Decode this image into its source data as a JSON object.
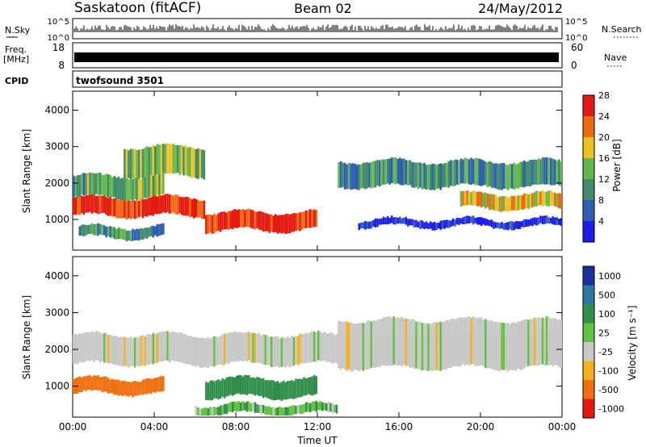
{
  "header": {
    "title": "Saskatoon (fitACF)",
    "beam": "Beam 02",
    "date": "24/May/2012"
  },
  "noise_panel": {
    "left_label": "N.Sky",
    "right_label": "N.Search",
    "left_ticks": [
      "10^5",
      "10^0"
    ],
    "right_ticks": [
      "10^5",
      "10^0"
    ]
  },
  "freq_panel": {
    "left_label_1": "Freq.",
    "left_label_2": "[MHz]",
    "left_ticks": [
      "18",
      "8"
    ],
    "right_label": "Nave",
    "right_ticks": [
      "60",
      "0"
    ]
  },
  "cpid_panel": {
    "label": "CPID",
    "value": "twofsound 3501"
  },
  "power_panel": {
    "ylabel": "Slant Range [km]",
    "yticks": [
      "1000",
      "2000",
      "3000",
      "4000"
    ],
    "colorbar_label": "Power [dB]",
    "colorbar_ticks": [
      "4",
      "8",
      "12",
      "16",
      "20",
      "24",
      "28"
    ],
    "colorbar_colors": [
      "#1d1dea",
      "#2e5fb4",
      "#3f8b6a",
      "#63b84b",
      "#f0c020",
      "#ee6a10",
      "#e41a10"
    ]
  },
  "velocity_panel": {
    "ylabel": "Slant Range [km]",
    "yticks": [
      "1000",
      "2000",
      "3000",
      "4000"
    ],
    "colorbar_label": "Velocity [m s⁻¹]",
    "colorbar_ticks": [
      "1000",
      "500",
      "100",
      "25",
      "-25",
      "-100",
      "-500",
      "-1000"
    ],
    "colorbar_colors": [
      "#1c2f9e",
      "#2e78a8",
      "#2f8f4a",
      "#62c23d",
      "#c8c8c8",
      "#f5b020",
      "#f07010",
      "#e41a10"
    ]
  },
  "x_axis": {
    "ticks": [
      "00:00",
      "04:00",
      "08:00",
      "12:00",
      "16:00",
      "20:00",
      "00:00"
    ],
    "label": "Time UT"
  },
  "chart_data": {
    "type": "heatmap",
    "title": "Saskatoon (fitACF)",
    "subtitle": "Beam 02",
    "date": "24/May/2012",
    "xlabel": "Time UT",
    "x_ticks": [
      "00:00",
      "04:00",
      "08:00",
      "12:00",
      "16:00",
      "20:00",
      "00:00"
    ],
    "xlim_hours": [
      0,
      24
    ],
    "panels": [
      {
        "name": "Power",
        "ylabel": "Slant Range [km]",
        "ylim": [
          180,
          4500
        ],
        "color_scale_label": "Power [dB]",
        "color_scale": [
          4,
          8,
          12,
          16,
          20,
          24,
          28
        ],
        "bands": [
          {
            "t": [
              0,
              6.5
            ],
            "range_km": [
              1100,
              1600
            ],
            "power_db": 28
          },
          {
            "t": [
              0,
              4.5
            ],
            "range_km": [
              1600,
              2200
            ],
            "power_db": 14
          },
          {
            "t": [
              0.3,
              4.5
            ],
            "range_km": [
              500,
              800
            ],
            "power_db": 12
          },
          {
            "t": [
              2.5,
              6.5
            ],
            "range_km": [
              2200,
              3000
            ],
            "power_db": 16
          },
          {
            "t": [
              6.5,
              12
            ],
            "range_km": [
              700,
              1200
            ],
            "power_db": 28
          },
          {
            "t": [
              13,
              24
            ],
            "range_km": [
              1900,
              2600
            ],
            "power_db": 12
          },
          {
            "t": [
              19,
              24
            ],
            "range_km": [
              1300,
              1700
            ],
            "power_db": 20
          },
          {
            "t": [
              14,
              24
            ],
            "range_km": [
              800,
              1000
            ],
            "power_db": 4
          }
        ]
      },
      {
        "name": "Velocity",
        "ylabel": "Slant Range [km]",
        "ylim": [
          180,
          4500
        ],
        "color_scale_label": "Velocity [m s^-1]",
        "color_scale": [
          1000,
          500,
          100,
          25,
          -25,
          -100,
          -500,
          -1000
        ],
        "bands": [
          {
            "t": [
              0,
              24
            ],
            "range_km": [
              1600,
              2400
            ],
            "velocity": 0
          },
          {
            "t": [
              0,
              4.5
            ],
            "range_km": [
              800,
              1200
            ],
            "velocity": -200
          },
          {
            "t": [
              6.5,
              12
            ],
            "range_km": [
              700,
              1200
            ],
            "velocity": 200
          },
          {
            "t": [
              6,
              13
            ],
            "range_km": [
              250,
              500
            ],
            "velocity": 50
          },
          {
            "t": [
              13,
              24
            ],
            "range_km": [
              1500,
              2800
            ],
            "velocity": 0
          }
        ]
      }
    ],
    "noise": {
      "left_label": "N.Sky",
      "right_label": "N.Search",
      "scale": [
        "10^0",
        "10^5"
      ]
    },
    "frequency_MHz": {
      "range": [
        8,
        18
      ],
      "value": 11
    },
    "nave": {
      "range": [
        0,
        60
      ]
    },
    "cpid": "twofsound 3501"
  }
}
